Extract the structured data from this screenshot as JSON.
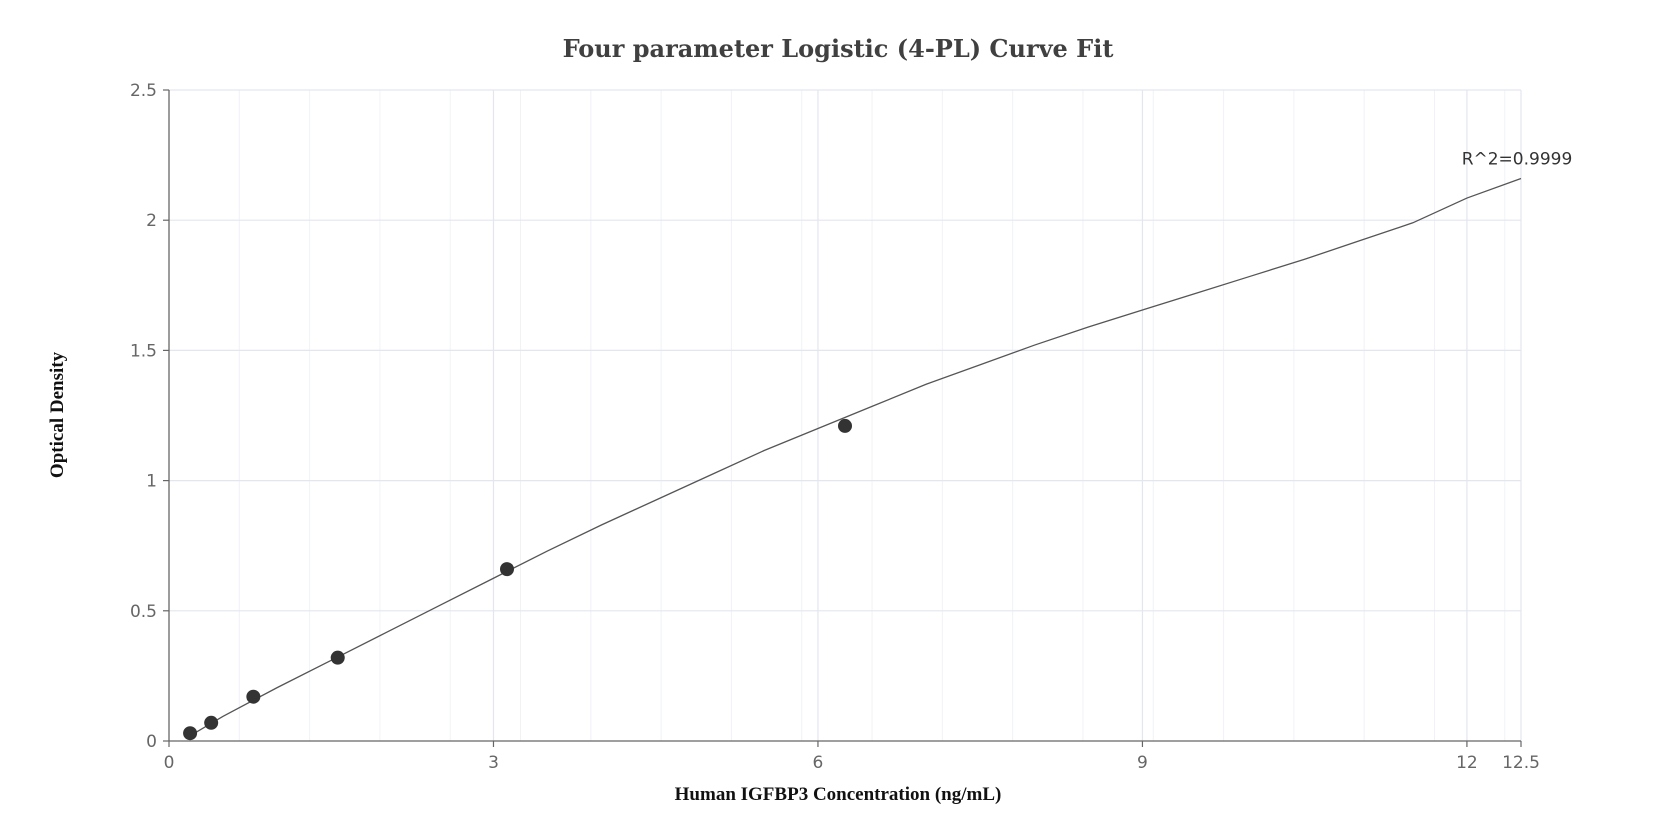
{
  "chart_data": {
    "type": "scatter",
    "title": "Four parameter Logistic (4-PL) Curve Fit",
    "xlabel": "Human IGFBP3 Concentration (ng/mL)",
    "ylabel": "Optical Density",
    "xlim": [
      0,
      12.5
    ],
    "ylim": [
      0,
      2.5
    ],
    "x_ticks": [
      0,
      3,
      6,
      9,
      12,
      12.5
    ],
    "y_ticks": [
      0,
      0.5,
      1,
      1.5,
      2,
      2.5
    ],
    "grid": true,
    "points": [
      {
        "x": 0.195,
        "y": 0.03
      },
      {
        "x": 0.39,
        "y": 0.07
      },
      {
        "x": 0.78,
        "y": 0.17
      },
      {
        "x": 1.56,
        "y": 0.32
      },
      {
        "x": 3.125,
        "y": 0.66
      },
      {
        "x": 6.25,
        "y": 1.21
      }
    ],
    "fit_curve": {
      "model": "4-PL",
      "x": [
        0.195,
        0.5,
        1,
        1.5,
        2,
        2.5,
        3,
        3.5,
        4,
        4.5,
        5,
        5.5,
        6,
        6.5,
        7,
        7.5,
        8,
        8.5,
        9,
        9.5,
        10,
        10.5,
        11,
        11.5,
        12,
        12.5
      ],
      "y": [
        0.02,
        0.095,
        0.205,
        0.31,
        0.415,
        0.52,
        0.625,
        0.73,
        0.83,
        0.925,
        1.02,
        1.115,
        1.2,
        1.285,
        1.37,
        1.445,
        1.52,
        1.59,
        1.655,
        1.72,
        1.785,
        1.85,
        1.92,
        1.99,
        2.085,
        2.16
      ]
    },
    "annotation": "R^2=0.9999",
    "annotation_point": {
      "x": 12.5,
      "y": 2.16
    },
    "colors": {
      "points": "#333333",
      "curve": "#555555",
      "grid": "#e3e6ef",
      "axis": "#666666"
    }
  }
}
